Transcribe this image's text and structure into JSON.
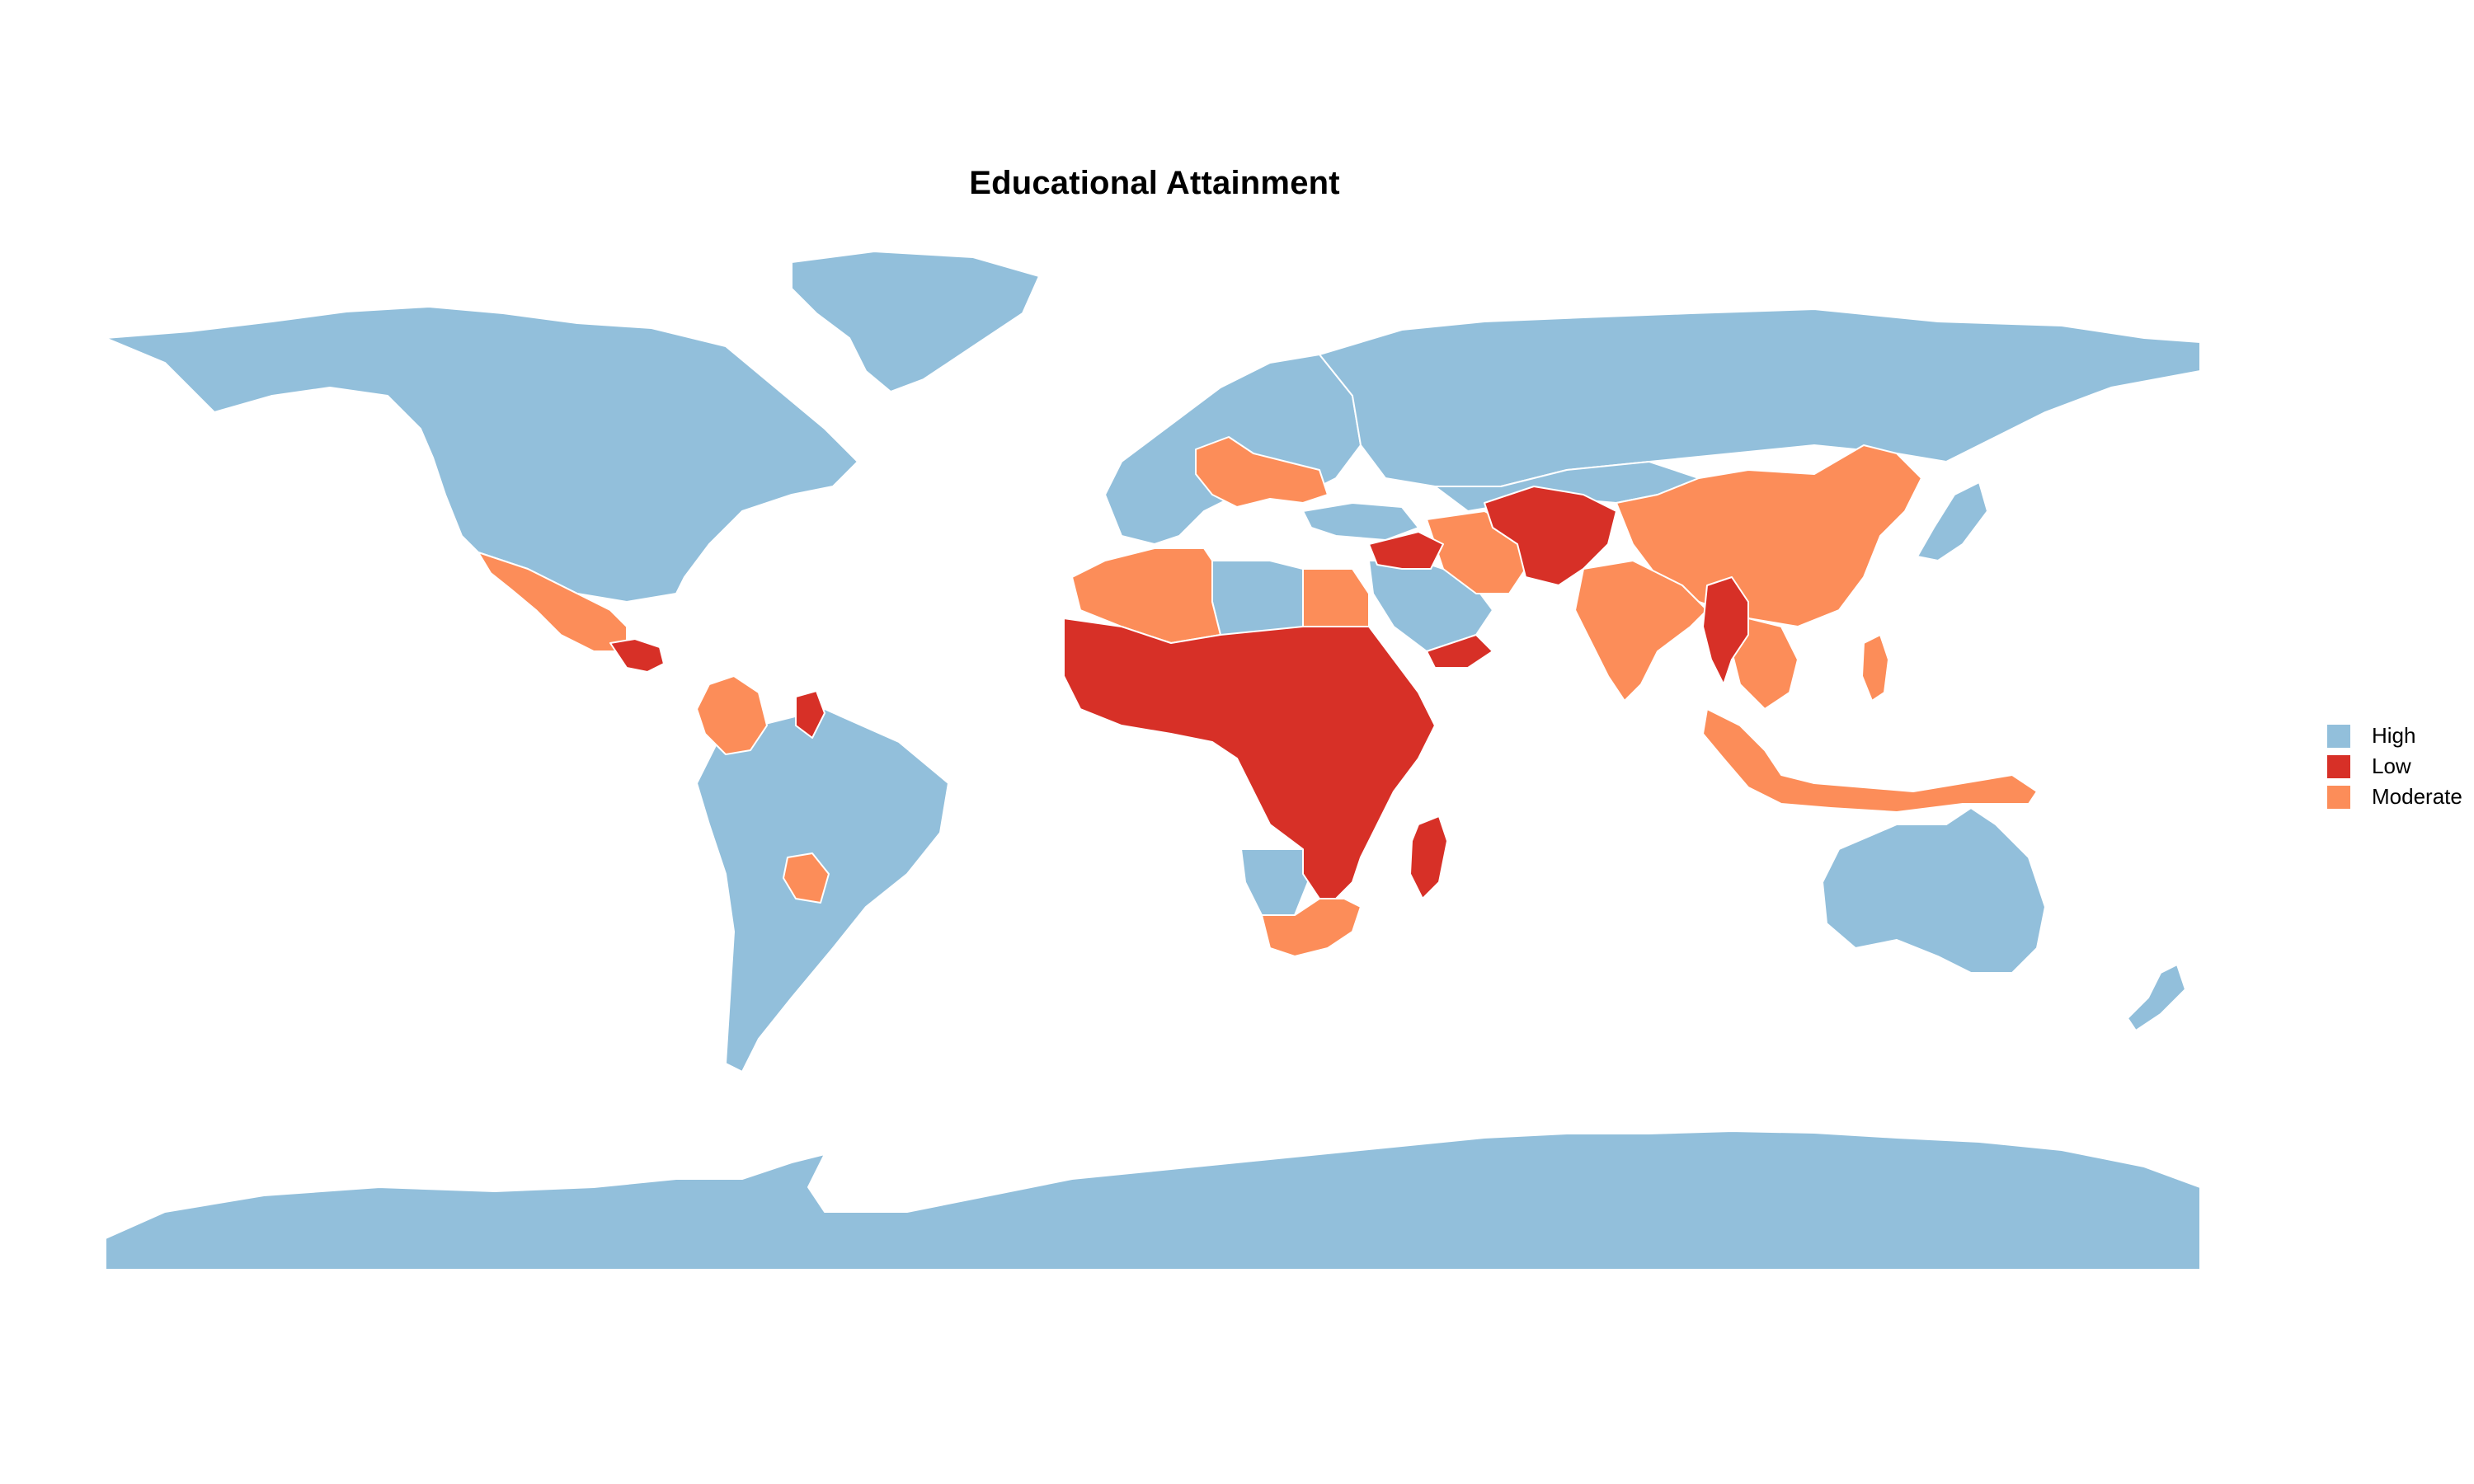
{
  "title": "Educational Attainment",
  "legend": {
    "items": [
      {
        "label": "High",
        "color": "#92bfdb"
      },
      {
        "label": "Low",
        "color": "#d73027"
      },
      {
        "label": "Moderate",
        "color": "#fc8d59"
      }
    ]
  },
  "colors": {
    "high": "#92bfdb",
    "low": "#d73027",
    "moderate": "#fc8d59",
    "border": "#ffffff"
  },
  "regions": [
    {
      "name": "North America",
      "level": "High"
    },
    {
      "name": "Greenland",
      "level": "High"
    },
    {
      "name": "Mexico",
      "level": "Moderate"
    },
    {
      "name": "Central America",
      "level": "Low"
    },
    {
      "name": "Colombia",
      "level": "Moderate"
    },
    {
      "name": "Venezuela",
      "level": "Low"
    },
    {
      "name": "South America",
      "level": "High"
    },
    {
      "name": "Paraguay",
      "level": "Moderate"
    },
    {
      "name": "Europe",
      "level": "High"
    },
    {
      "name": "Southeast Europe",
      "level": "Moderate"
    },
    {
      "name": "Russia",
      "level": "High"
    },
    {
      "name": "North Africa",
      "level": "Moderate"
    },
    {
      "name": "Libya",
      "level": "High"
    },
    {
      "name": "Egypt",
      "level": "Moderate"
    },
    {
      "name": "Sub-Saharan Africa",
      "level": "Low"
    },
    {
      "name": "Southern Africa",
      "level": "Moderate"
    },
    {
      "name": "Namibia",
      "level": "High"
    },
    {
      "name": "Madagascar",
      "level": "Low"
    },
    {
      "name": "Middle East",
      "level": "Low"
    },
    {
      "name": "Saudi Arabia",
      "level": "High"
    },
    {
      "name": "Iran",
      "level": "Moderate"
    },
    {
      "name": "Afghanistan and Pakistan",
      "level": "Low"
    },
    {
      "name": "Central Asia",
      "level": "High"
    },
    {
      "name": "China",
      "level": "Moderate"
    },
    {
      "name": "India",
      "level": "Moderate"
    },
    {
      "name": "Myanmar",
      "level": "Low"
    },
    {
      "name": "Indochina",
      "level": "Moderate"
    },
    {
      "name": "Indonesia",
      "level": "Moderate"
    },
    {
      "name": "Japan",
      "level": "High"
    },
    {
      "name": "Australia",
      "level": "High"
    },
    {
      "name": "New Zealand",
      "level": "High"
    },
    {
      "name": "Antarctica",
      "level": "High"
    }
  ]
}
